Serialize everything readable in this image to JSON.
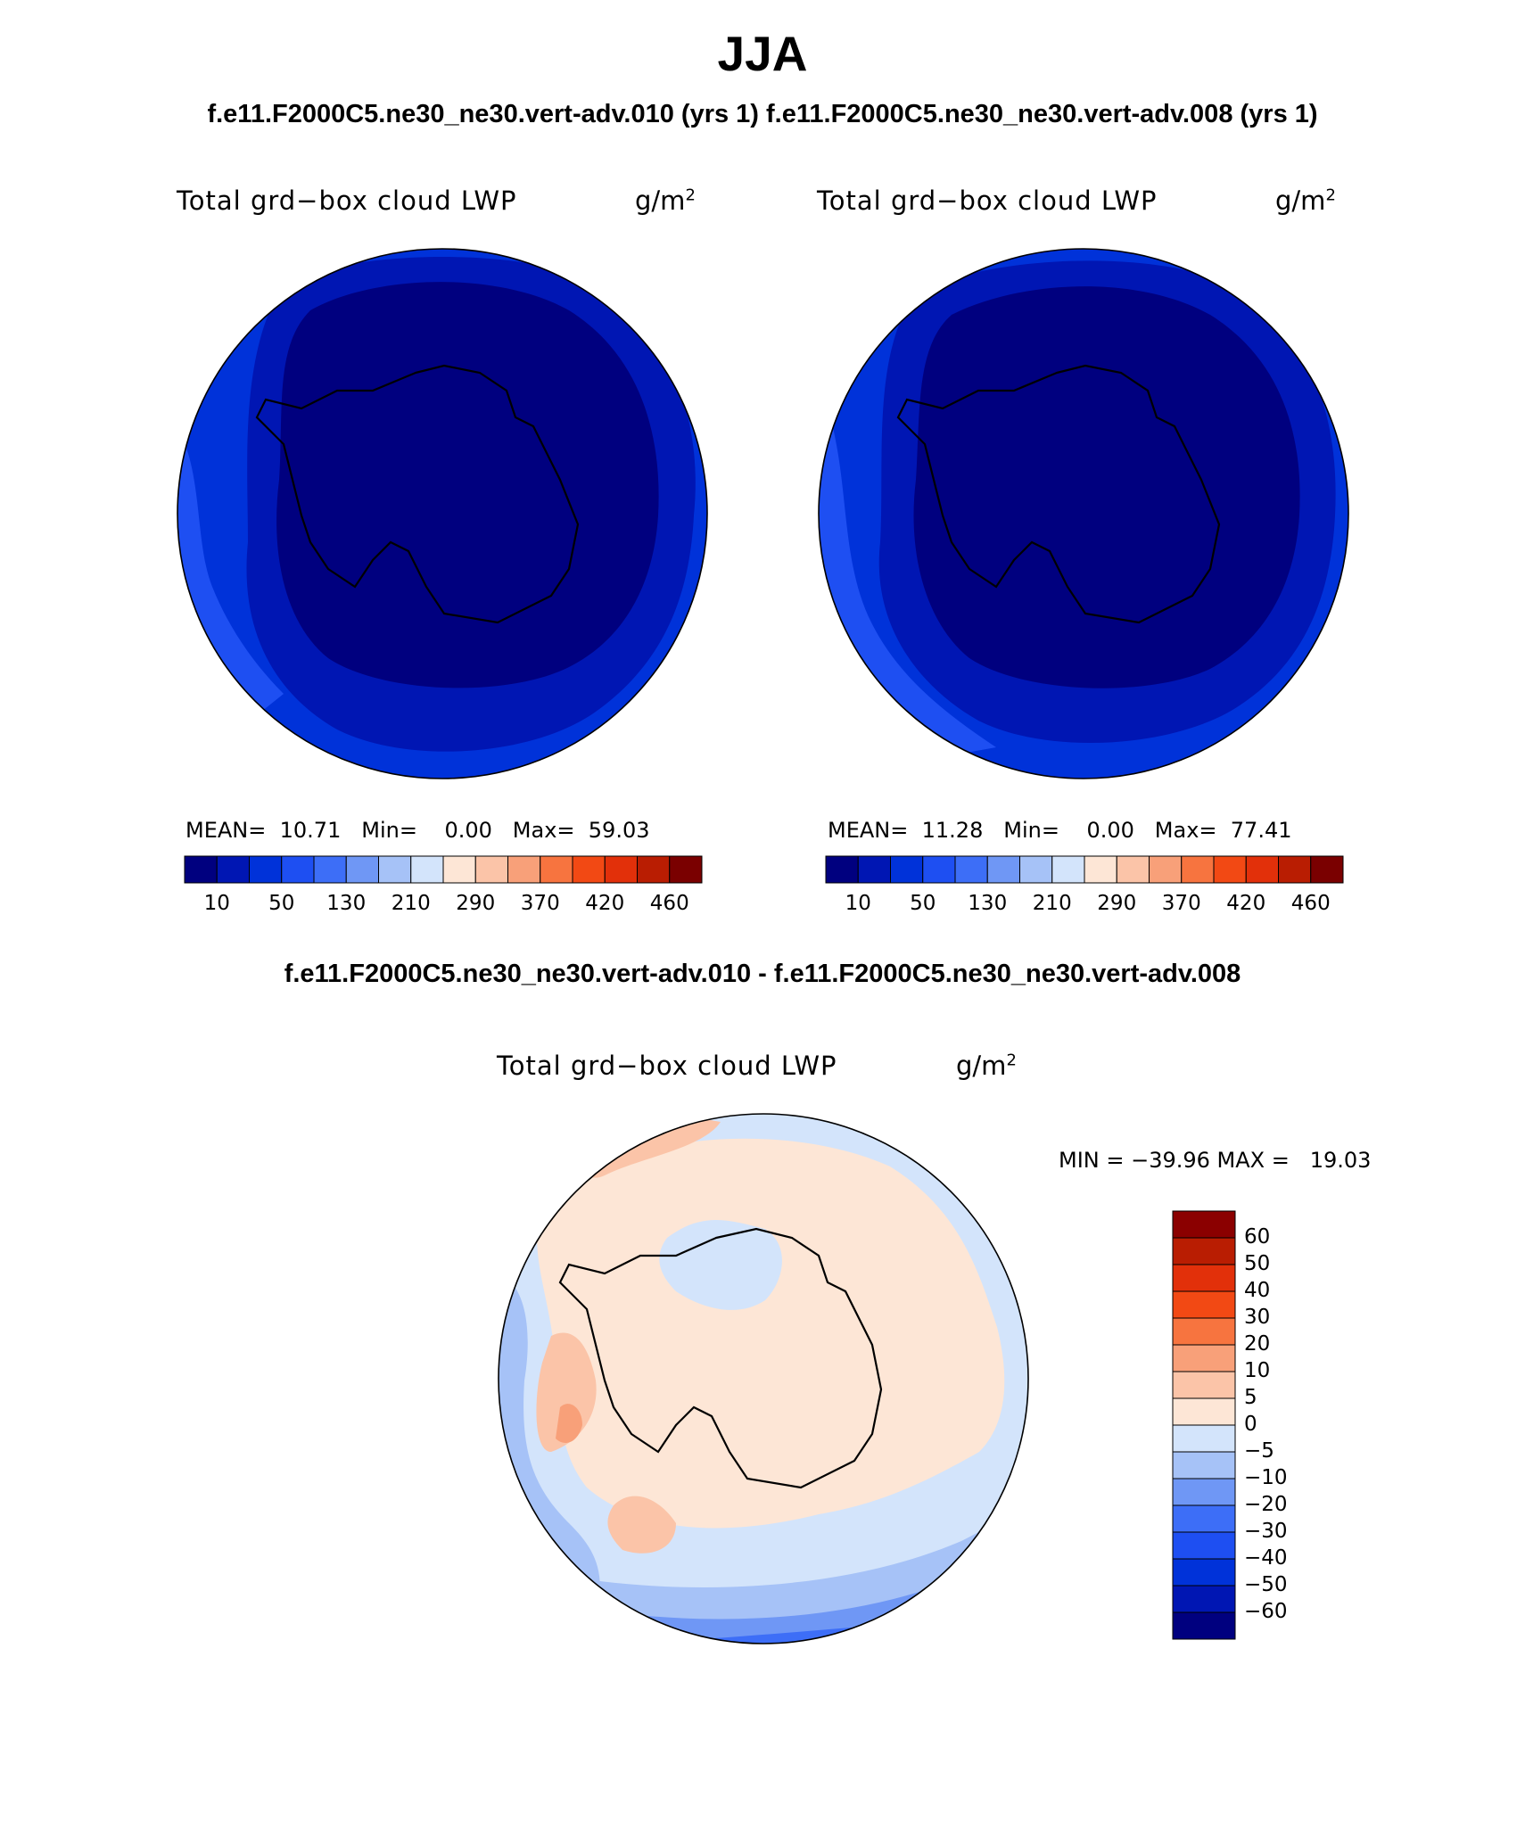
{
  "title": "JJA",
  "subtitle": "f.e11.F2000C5.ne30_ne30.vert-adv.010 (yrs 1) f.e11.F2000C5.ne30_ne30.vert-adv.008 (yrs 1)",
  "diff_title": "f.e11.F2000C5.ne30_ne30.vert-adv.010 - f.e11.F2000C5.ne30_ne30.vert-adv.008",
  "panels": [
    {
      "variable": "Total grd−box cloud LWP",
      "units": "g/m",
      "units_exp": "2",
      "stats": {
        "mean_label": "MEAN=",
        "mean": "10.71",
        "min_label": "Min=",
        "min": "0.00",
        "max_label": "Max=",
        "max": "59.03"
      }
    },
    {
      "variable": "Total grd−box cloud LWP",
      "units": "g/m",
      "units_exp": "2",
      "stats": {
        "mean_label": "MEAN=",
        "mean": "11.28",
        "min_label": "Min=",
        "min": "0.00",
        "max_label": "Max=",
        "max": "77.41"
      }
    }
  ],
  "diff_panel": {
    "variable": "Total grd−box cloud LWP",
    "units": "g/m",
    "units_exp": "2",
    "minmax": "MIN = −39.96 MAX =   19.03"
  },
  "colorbar_top": {
    "tick_labels": [
      "10",
      "50",
      "130",
      "210",
      "290",
      "370",
      "420",
      "460"
    ],
    "colors": [
      "#00007f",
      "#0016b3",
      "#0032d9",
      "#1e4ff2",
      "#3d6ef7",
      "#6f97f5",
      "#a6c2f7",
      "#d3e4fb",
      "#fde6d6",
      "#fbc4a8",
      "#f8a079",
      "#f7743f",
      "#f24914",
      "#e2300a",
      "#b91d02",
      "#7a0000"
    ]
  },
  "colorbar_diff": {
    "tick_labels": [
      "60",
      "50",
      "40",
      "30",
      "20",
      "10",
      "5",
      "0",
      "−5",
      "−10",
      "−20",
      "−30",
      "−40",
      "−50",
      "−60"
    ],
    "colors_top_to_bottom": [
      "#8b0000",
      "#b91d02",
      "#e2300a",
      "#f24914",
      "#f7743f",
      "#f8a079",
      "#fbc4a8",
      "#fde6d6",
      "#d3e4fb",
      "#a6c2f7",
      "#6f97f5",
      "#3d6ef7",
      "#1e4ff2",
      "#0032d9",
      "#0016b3",
      "#00007f"
    ]
  },
  "map_colors": {
    "lvl0": "#00007f",
    "lvl1": "#0016b3",
    "lvl2": "#0032d9",
    "lvl3": "#1e4ff2",
    "diff_pos1": "#fde6d6",
    "diff_pos2": "#fbc4a8",
    "diff_pos3": "#f8a079",
    "diff_pos4": "#f7743f",
    "diff_neg1": "#d3e4fb",
    "diff_neg2": "#a6c2f7",
    "diff_neg3": "#6f97f5",
    "diff_neg4": "#3d6ef7",
    "diff_neg5": "#1e4ff2"
  }
}
